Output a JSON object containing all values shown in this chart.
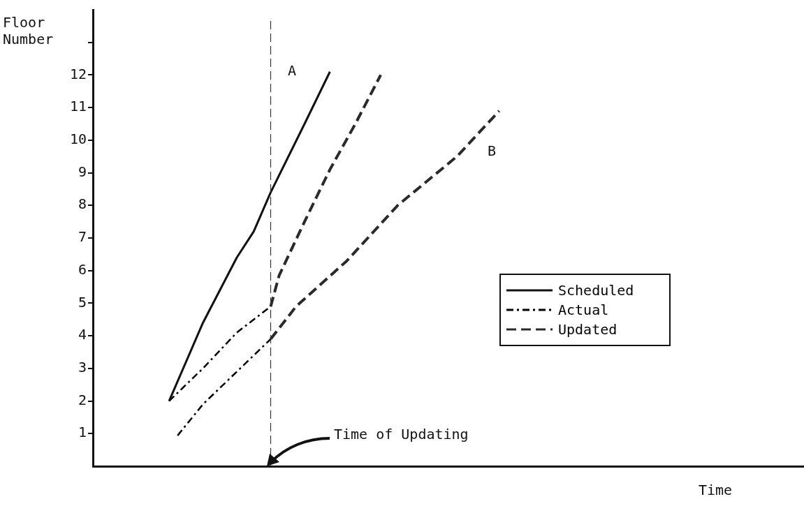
{
  "chart_data": {
    "type": "line",
    "ylabel": "Floor Number",
    "xlabel": "Time",
    "categories": [
      null,
      null,
      null,
      null,
      null,
      null,
      null,
      null,
      null,
      null,
      null,
      null,
      null,
      null,
      null,
      null,
      null,
      null,
      null,
      null,
      null,
      null,
      null,
      null,
      null,
      null,
      null,
      null,
      null,
      null,
      null,
      null,
      null,
      null,
      null,
      null,
      null,
      null,
      null,
      null,
      null,
      null,
      null,
      null,
      null,
      null,
      null,
      null,
      null,
      null,
      null,
      null,
      null,
      null,
      null,
      null,
      null,
      null,
      null,
      null,
      null,
      null,
      null,
      null,
      null,
      null,
      null,
      null,
      null,
      null,
      null,
      null,
      null,
      null,
      null,
      null,
      null,
      null,
      null,
      null,
      null,
      null,
      null,
      null,
      null
    ],
    "series": [
      {
        "name": "Scheduled",
        "color": "#111111",
        "line_style": "solid",
        "values": [
          null,
          null,
          null,
          null,
          null,
          null,
          null,
          null,
          null,
          2.0,
          null,
          null,
          null,
          4.4,
          null,
          null,
          null,
          6.4,
          null,
          7.2,
          null,
          8.4,
          null,
          null,
          null,
          10.5,
          null,
          null,
          12.1,
          null,
          null,
          null,
          null,
          null,
          null,
          null,
          null,
          null,
          null,
          null,
          null,
          null,
          null,
          null,
          null,
          null,
          null,
          null,
          null,
          null,
          null,
          null,
          null,
          null,
          null,
          null,
          null,
          null,
          null,
          null,
          null,
          null,
          null,
          null,
          null,
          null,
          null,
          null,
          null,
          null,
          null,
          null,
          null,
          null,
          null,
          null,
          null,
          null,
          null,
          null,
          null,
          null,
          null,
          null,
          null
        ]
      },
      {
        "name": "Actual",
        "color": "#000000",
        "line_style": "dashdot",
        "values": [
          null,
          null,
          null,
          null,
          null,
          null,
          null,
          null,
          null,
          2.0,
          null,
          null,
          null,
          3.0,
          null,
          null,
          null,
          4.1,
          null,
          null,
          null,
          4.9,
          null,
          null,
          null,
          null,
          null,
          null,
          null,
          null,
          null,
          null,
          null,
          null,
          null,
          null,
          null,
          null,
          null,
          null,
          null,
          null,
          null,
          null,
          null,
          null,
          null,
          null,
          null,
          null,
          null,
          null,
          null,
          null,
          null,
          null,
          null,
          null,
          null,
          null,
          null,
          null,
          null,
          null,
          null,
          null,
          null,
          null,
          null,
          null,
          null,
          null,
          null,
          null,
          null,
          null,
          null,
          null,
          null,
          null,
          null,
          null,
          null,
          null,
          null
        ]
      },
      {
        "name": "Updated",
        "color": "#2a2a2a",
        "line_style": "dashed",
        "values": [
          null,
          null,
          null,
          null,
          null,
          null,
          null,
          null,
          null,
          null,
          null,
          null,
          null,
          null,
          null,
          null,
          null,
          null,
          null,
          null,
          null,
          4.9,
          5.85,
          null,
          null,
          7.5,
          null,
          null,
          9.1,
          null,
          null,
          10.5,
          null,
          null,
          12.0,
          null,
          null,
          null,
          null,
          null,
          null,
          null,
          null,
          null,
          null,
          null,
          null,
          null,
          null,
          null,
          null,
          null,
          null,
          null,
          null,
          null,
          null,
          null,
          null,
          null,
          null,
          null,
          null,
          null,
          null,
          null,
          null,
          null,
          null,
          null,
          null,
          null,
          null,
          null,
          null,
          null,
          null,
          null,
          null,
          null,
          null,
          null,
          null,
          null,
          null
        ]
      },
      {
        "color": "#000000",
        "line_style": "dashdot",
        "values": [
          null,
          null,
          null,
          null,
          null,
          null,
          null,
          null,
          null,
          null,
          0.94,
          null,
          null,
          1.9,
          null,
          null,
          null,
          2.9,
          null,
          null,
          null,
          3.9,
          null,
          null,
          null,
          null,
          null,
          null,
          null,
          null,
          null,
          null,
          null,
          null,
          null,
          null,
          null,
          null,
          null,
          null,
          null,
          null,
          null,
          null,
          null,
          null,
          null,
          null,
          null,
          null,
          null,
          null,
          null,
          null,
          null,
          null,
          null,
          null,
          null,
          null,
          null,
          null,
          null,
          null,
          null,
          null,
          null,
          null,
          null,
          null,
          null,
          null,
          null,
          null,
          null,
          null,
          null,
          null,
          null,
          null,
          null,
          null,
          null,
          null,
          null
        ]
      },
      {
        "color": "#2a2a2a",
        "line_style": "dashed",
        "values": [
          null,
          null,
          null,
          null,
          null,
          null,
          null,
          null,
          null,
          null,
          null,
          null,
          null,
          null,
          null,
          null,
          null,
          null,
          null,
          null,
          null,
          3.9,
          null,
          null,
          4.9,
          null,
          null,
          null,
          null,
          null,
          6.3,
          null,
          null,
          null,
          null,
          null,
          8.0,
          null,
          null,
          null,
          null,
          null,
          null,
          9.5,
          null,
          null,
          null,
          null,
          10.9,
          null,
          null,
          null,
          null,
          null,
          null,
          null,
          null,
          null,
          null,
          null,
          null,
          null,
          null,
          null,
          null,
          null,
          null,
          null,
          null,
          null,
          null,
          null,
          null,
          null,
          null,
          null,
          null,
          null,
          null,
          null,
          null,
          null,
          null,
          null,
          null
        ]
      }
    ],
    "ylim": [
      0,
      14
    ],
    "yticks": [
      1,
      2,
      3,
      4,
      5,
      6,
      7,
      8,
      9,
      10,
      11,
      12,
      {
        "value": 13,
        "label": null
      }
    ],
    "grid": false,
    "legend": "right",
    "tick_labels": "y",
    "annotations": [
      "A",
      "B",
      "Time of Updating"
    ]
  }
}
